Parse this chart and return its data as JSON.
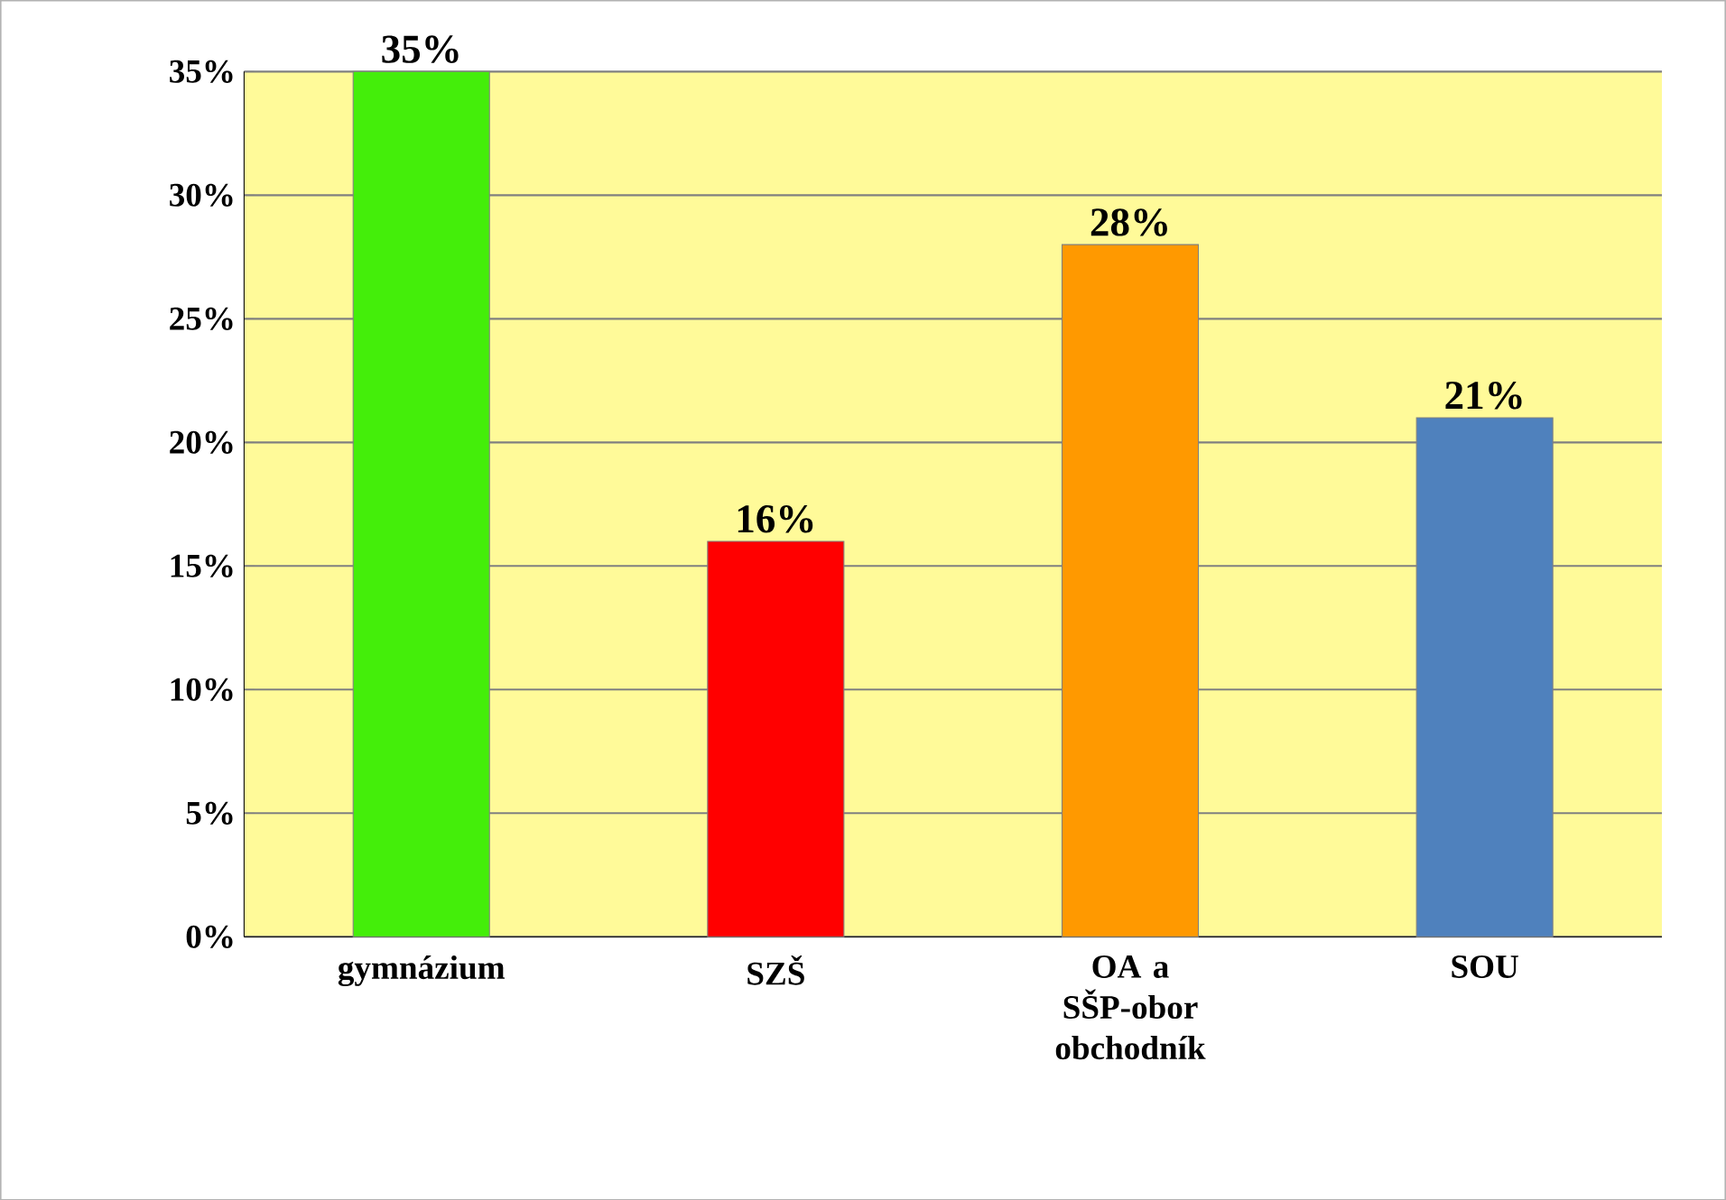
{
  "chart_data": {
    "type": "bar",
    "categories": [
      "gymnázium",
      "SZŠ",
      "OA a SŠP-obor obchodník",
      "SOU"
    ],
    "values": [
      35,
      16,
      28,
      21
    ],
    "colors": [
      "#44ee0a",
      "#ff0000",
      "#ff9900",
      "#4f81bd"
    ],
    "value_labels": [
      "35%",
      "16%",
      "28%",
      "21%"
    ],
    "ylim": [
      0,
      35
    ],
    "yticks": [
      {
        "value": 0,
        "label": "0%"
      },
      {
        "value": 5,
        "label": "5%"
      },
      {
        "value": 10,
        "label": "10%"
      },
      {
        "value": 15,
        "label": "15%"
      },
      {
        "value": 20,
        "label": "20%"
      },
      {
        "value": 25,
        "label": "25%"
      },
      {
        "value": 30,
        "label": "30%"
      },
      {
        "value": 35,
        "label": "35%"
      }
    ],
    "grid": "y"
  }
}
